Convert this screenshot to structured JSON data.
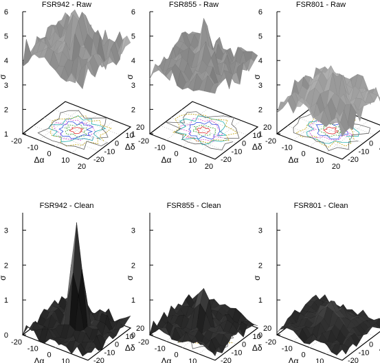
{
  "chart_data": [
    {
      "type": "surface3d",
      "title": "FSR942 - Raw",
      "xlabel": "Δα",
      "ylabel": "Δδ",
      "zlabel": "σ",
      "xticks": [
        "-20",
        "-10",
        "0",
        "10",
        "20"
      ],
      "yticks": [
        "-20",
        "-10",
        "0",
        "10",
        "20"
      ],
      "zticks": [
        "1",
        "2",
        "3",
        "4",
        "5",
        "6"
      ],
      "zlim": [
        1,
        6
      ],
      "peak": 5.8,
      "base": 4.3,
      "noise": 0.55,
      "width": 5.0,
      "contour": true,
      "shade": "gray"
    },
    {
      "type": "surface3d",
      "title": "FSR855 - Raw",
      "xlabel": "Δα",
      "ylabel": "Δδ",
      "zlabel": "σ",
      "xticks": [
        "-20",
        "-10",
        "0",
        "10",
        "20"
      ],
      "yticks": [
        "-20",
        "-10",
        "0",
        "10",
        "20"
      ],
      "zticks": [
        "1",
        "2",
        "3",
        "4",
        "5",
        "6"
      ],
      "zlim": [
        1,
        6
      ],
      "peak": 5.3,
      "base": 3.7,
      "noise": 0.45,
      "width": 4.0,
      "contour": true,
      "shade": "gray"
    },
    {
      "type": "surface3d",
      "title": "FSR801 - Raw",
      "xlabel": "Δα",
      "ylabel": "Δδ",
      "zlabel": "σ",
      "xticks": [
        "-20",
        "-10",
        "0",
        "10",
        "20"
      ],
      "yticks": [
        "-20",
        "-10",
        "0",
        "10",
        "20"
      ],
      "zticks": [
        "1",
        "2",
        "3",
        "4",
        "5",
        "6"
      ],
      "zlim": [
        1,
        6
      ],
      "peak": 3.6,
      "base": 2.3,
      "noise": 0.45,
      "width": 6.0,
      "contour": true,
      "shade": "light"
    },
    {
      "type": "surface3d",
      "title": "FSR942 - Clean",
      "xlabel": "Δα",
      "ylabel": "Δδ",
      "zlabel": "σ",
      "xticks": [
        "-20",
        "-10",
        "0",
        "10",
        "20"
      ],
      "yticks": [
        "-20",
        "-10",
        "0",
        "10",
        "20"
      ],
      "zticks": [
        "0",
        "1",
        "2",
        "3"
      ],
      "zlim": [
        0,
        3.5
      ],
      "peak": 3.2,
      "base": 0.15,
      "noise": 0.2,
      "width": 3.0,
      "contour": false,
      "shade": "dark"
    },
    {
      "type": "surface3d",
      "title": "FSR855 - Clean",
      "xlabel": "Δα",
      "ylabel": "Δδ",
      "zlabel": "σ",
      "xticks": [
        "-20",
        "-10",
        "0",
        "10",
        "20"
      ],
      "yticks": [
        "-20",
        "-10",
        "0",
        "10",
        "20"
      ],
      "zticks": [
        "0",
        "1",
        "2",
        "3"
      ],
      "zlim": [
        0,
        3.5
      ],
      "peak": 1.4,
      "base": 0.2,
      "noise": 0.18,
      "width": 3.0,
      "contour": true,
      "shade": "dark"
    },
    {
      "type": "surface3d",
      "title": "FSR801 - Clean",
      "xlabel": "Δα",
      "ylabel": "Δδ",
      "zlabel": "σ",
      "xticks": [
        "-20",
        "-10",
        "0",
        "10",
        "20"
      ],
      "yticks": [
        "-20",
        "-10",
        "0",
        "10",
        "20"
      ],
      "zticks": [
        "0",
        "1",
        "2",
        "3"
      ],
      "zlim": [
        0,
        3.5
      ],
      "peak": 0.8,
      "base": 0.2,
      "noise": 0.14,
      "width": 6.0,
      "contour": false,
      "shade": "dark"
    }
  ]
}
